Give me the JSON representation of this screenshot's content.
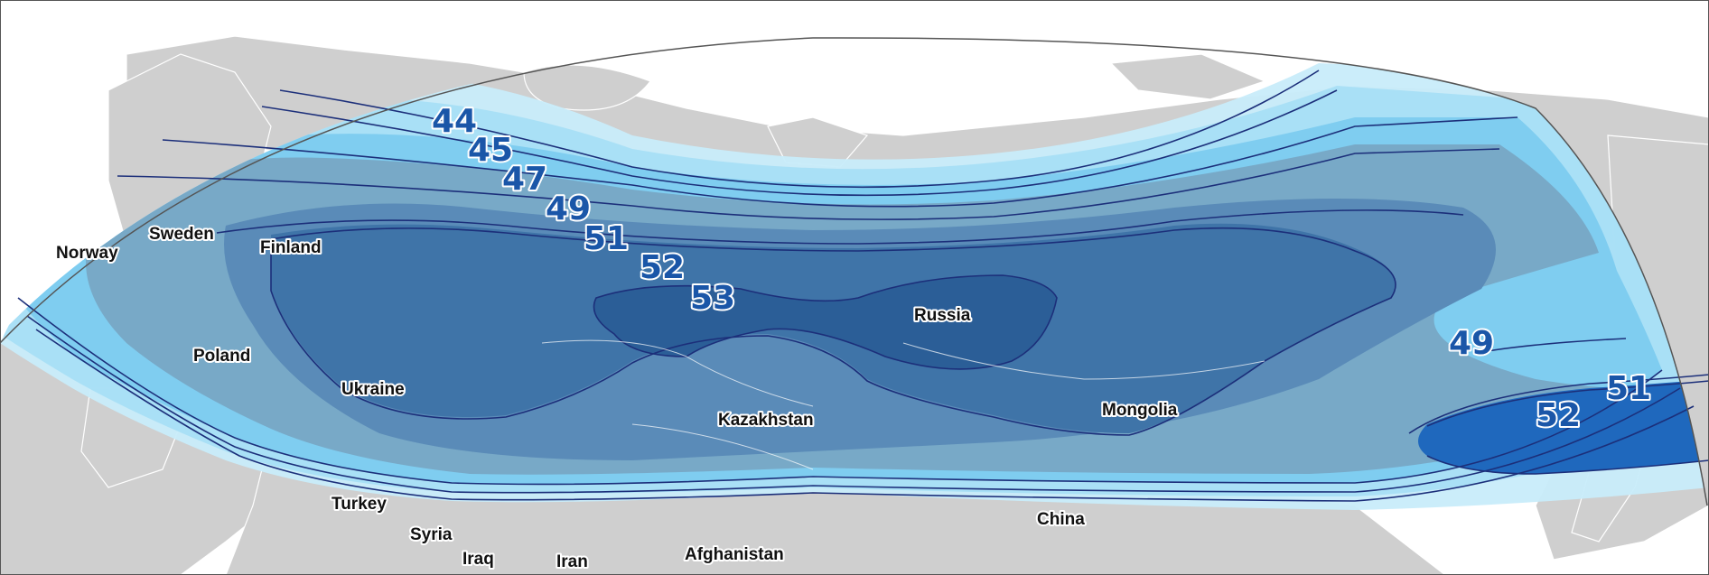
{
  "colors": {
    "background": "#ffffff",
    "land": "#cfcfcf",
    "band_44": "#c8ecfa",
    "band_45": "#a8dff5",
    "band_47": "#7fcdf0",
    "band_49": "#78a9c7",
    "band_51": "#5a8bb8",
    "band_52": "#3f74a8",
    "band_53": "#2b5e97",
    "band_52_east": "#1f68bd",
    "contour_line": "#1c2f7a",
    "contour_label": "#1a56a8"
  },
  "contour_labels": [
    {
      "id": "44",
      "text": "44"
    },
    {
      "id": "45",
      "text": "45"
    },
    {
      "id": "47",
      "text": "47"
    },
    {
      "id": "49",
      "text": "49"
    },
    {
      "id": "51",
      "text": "51"
    },
    {
      "id": "52",
      "text": "52"
    },
    {
      "id": "53",
      "text": "53"
    },
    {
      "id": "49e",
      "text": "49"
    },
    {
      "id": "51e",
      "text": "51"
    },
    {
      "id": "52e",
      "text": "52"
    }
  ],
  "countries": [
    {
      "id": "norway",
      "text": "Norway"
    },
    {
      "id": "sweden",
      "text": "Sweden"
    },
    {
      "id": "finland",
      "text": "Finland"
    },
    {
      "id": "poland",
      "text": "Poland"
    },
    {
      "id": "ukraine",
      "text": "Ukraine"
    },
    {
      "id": "russia",
      "text": "Russia"
    },
    {
      "id": "kazakhstan",
      "text": "Kazakhstan"
    },
    {
      "id": "mongolia",
      "text": "Mongolia"
    },
    {
      "id": "turkey",
      "text": "Turkey"
    },
    {
      "id": "syria",
      "text": "Syria"
    },
    {
      "id": "iraq",
      "text": "Iraq"
    },
    {
      "id": "iran",
      "text": "Iran"
    },
    {
      "id": "afghanistan",
      "text": "Afghanistan"
    },
    {
      "id": "china",
      "text": "China"
    }
  ]
}
